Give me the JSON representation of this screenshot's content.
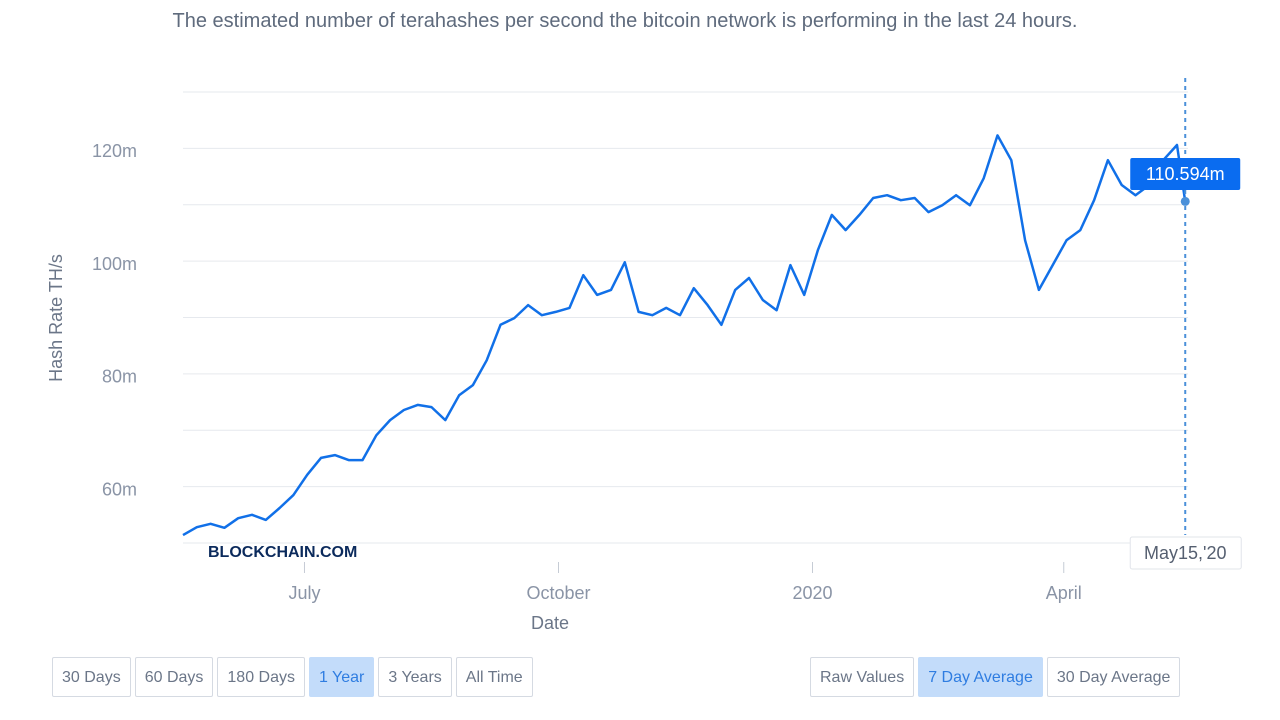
{
  "subtitle": "The estimated number of terahashes per second the bitcoin network is performing in the last 24 hours.",
  "chart_data": {
    "type": "line",
    "x_label": "Date",
    "y_label": "Hash Rate TH/s",
    "watermark": "BLOCKCHAIN.COM",
    "x": [
      "2019-05-18",
      "2019-05-23",
      "2019-05-28",
      "2019-06-02",
      "2019-06-07",
      "2019-06-12",
      "2019-06-17",
      "2019-06-22",
      "2019-06-27",
      "2019-07-02",
      "2019-07-07",
      "2019-07-12",
      "2019-07-17",
      "2019-07-22",
      "2019-07-27",
      "2019-08-01",
      "2019-08-06",
      "2019-08-11",
      "2019-08-16",
      "2019-08-21",
      "2019-08-26",
      "2019-08-31",
      "2019-09-05",
      "2019-09-10",
      "2019-09-15",
      "2019-09-20",
      "2019-09-25",
      "2019-09-30",
      "2019-10-05",
      "2019-10-10",
      "2019-10-15",
      "2019-10-20",
      "2019-10-25",
      "2019-10-30",
      "2019-11-04",
      "2019-11-09",
      "2019-11-14",
      "2019-11-19",
      "2019-11-24",
      "2019-11-29",
      "2019-12-04",
      "2019-12-09",
      "2019-12-14",
      "2019-12-19",
      "2019-12-24",
      "2019-12-29",
      "2020-01-03",
      "2020-01-08",
      "2020-01-13",
      "2020-01-18",
      "2020-01-23",
      "2020-01-28",
      "2020-02-02",
      "2020-02-07",
      "2020-02-12",
      "2020-02-17",
      "2020-02-22",
      "2020-02-27",
      "2020-03-03",
      "2020-03-08",
      "2020-03-13",
      "2020-03-18",
      "2020-03-23",
      "2020-03-28",
      "2020-04-02",
      "2020-04-07",
      "2020-04-12",
      "2020-04-17",
      "2020-04-22",
      "2020-04-27",
      "2020-05-02",
      "2020-05-07",
      "2020-05-12",
      "2020-05-15"
    ],
    "series": [
      {
        "name": "Hash Rate",
        "color": "#1170e8",
        "values": [
          51400000,
          52800000,
          53400000,
          52700000,
          54400000,
          55000000,
          54100000,
          56200000,
          58500000,
          62100000,
          65100000,
          65600000,
          64700000,
          64700000,
          69100000,
          71800000,
          73600000,
          74500000,
          74100000,
          71800000,
          76200000,
          78000000,
          82400000,
          88700000,
          89900000,
          92200000,
          90400000,
          91000000,
          91700000,
          97500000,
          94000000,
          94900000,
          99800000,
          91000000,
          90400000,
          91700000,
          90400000,
          95200000,
          92200000,
          88700000,
          94900000,
          97000000,
          93100000,
          91300000,
          99300000,
          94000000,
          102000000,
          108200000,
          105500000,
          108200000,
          111200000,
          111700000,
          110800000,
          111200000,
          108700000,
          109900000,
          111700000,
          109900000,
          114700000,
          122300000,
          117900000,
          103700000,
          94900000,
          99300000,
          103700000,
          105500000,
          110800000,
          117900000,
          113500000,
          111700000,
          113500000,
          117900000,
          120600000,
          110594000
        ]
      }
    ],
    "xlim": [
      "2019-05-18",
      "2020-05-16"
    ],
    "xticks": [
      {
        "value": "2019-07-01",
        "label": "July"
      },
      {
        "value": "2019-10-01",
        "label": "October"
      },
      {
        "value": "2020-01-01",
        "label": "2020"
      },
      {
        "value": "2020-04-01",
        "label": "April"
      }
    ],
    "ylim": [
      50000000,
      130000000
    ],
    "yticks": [
      {
        "value": 60000000,
        "label": "60m"
      },
      {
        "value": 80000000,
        "label": "80m"
      },
      {
        "value": 100000000,
        "label": "100m"
      },
      {
        "value": 120000000,
        "label": "120m"
      }
    ],
    "ygrid": [
      50000000,
      60000000,
      70000000,
      80000000,
      90000000,
      100000000,
      110000000,
      120000000,
      130000000
    ],
    "tooltip": {
      "value_label": "110.594m",
      "date_label": "May15,'20"
    }
  },
  "controls": {
    "ranges": [
      "30 Days",
      "60 Days",
      "180 Days",
      "1 Year",
      "3 Years",
      "All Time"
    ],
    "active_range": 3,
    "modes": [
      "Raw Values",
      "7 Day Average",
      "30 Day Average"
    ],
    "active_mode": 1
  }
}
